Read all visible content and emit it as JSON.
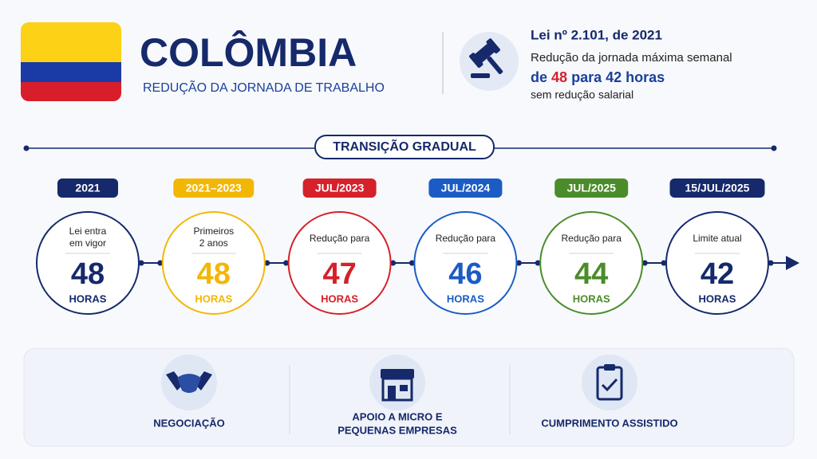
{
  "header": {
    "title": "COLÔMBIA",
    "subtitle": "REDUÇÃO DA JORNADA DE TRABALHO"
  },
  "law": {
    "title": "Lei nº 2.101, de 2021",
    "line1": "Redução da jornada máxima semanal",
    "line2": {
      "prefix": "de",
      "from": "48",
      "rest": "para 42 horas"
    },
    "line3": "sem redução salarial"
  },
  "timeline": {
    "label": "TRANSIÇÃO GRADUAL",
    "steps": [
      {
        "date": "2021",
        "caption": [
          "Lei entra",
          "em vigor"
        ],
        "value": 48,
        "unit": "HORAS",
        "color": "#15296b"
      },
      {
        "date": "2021–2023",
        "caption": [
          "Primeiros",
          "2 anos"
        ],
        "value": 48,
        "unit": "HORAS",
        "color": "#f2b705"
      },
      {
        "date": "JUL/2023",
        "caption": [
          "Redução para"
        ],
        "value": 47,
        "unit": "HORAS",
        "color": "#d6202a"
      },
      {
        "date": "JUL/2024",
        "caption": [
          "Redução para"
        ],
        "value": 46,
        "unit": "HORAS",
        "color": "#1b5cc4"
      },
      {
        "date": "JUL/2025",
        "caption": [
          "Redução para"
        ],
        "value": 44,
        "unit": "HORAS",
        "color": "#4a8c2a"
      },
      {
        "date": "15/JUL/2025",
        "caption": [
          "Limite atual"
        ],
        "value": 42,
        "unit": "HORAS",
        "color": "#15296b"
      }
    ]
  },
  "features": [
    {
      "label": [
        "NEGOCIAÇÃO"
      ]
    },
    {
      "label": [
        "APOIO A MICRO E",
        "PEQUENAS EMPRESAS"
      ]
    },
    {
      "label": [
        "CUMPRIMENTO ASSISTIDO"
      ]
    }
  ]
}
